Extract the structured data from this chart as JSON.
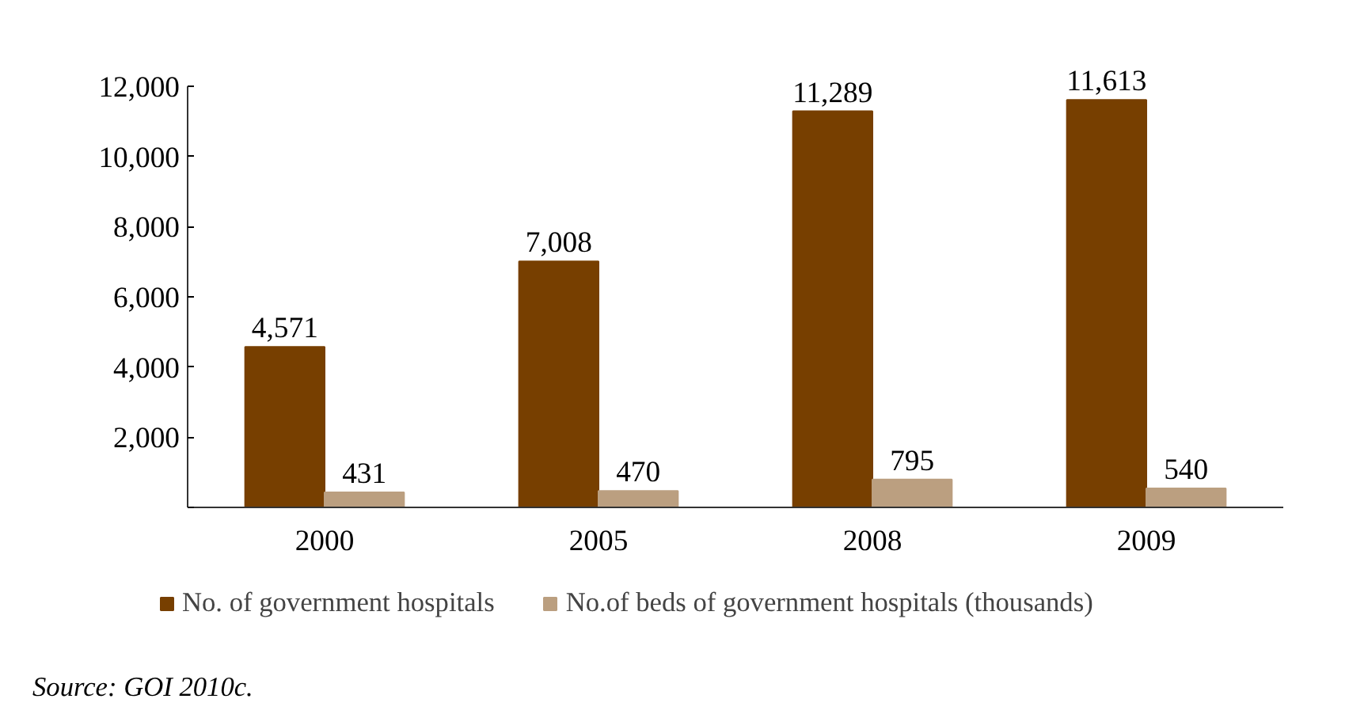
{
  "chart_data": {
    "type": "bar",
    "categories": [
      "2000",
      "2005",
      "2008",
      "2009"
    ],
    "series": [
      {
        "name": "No. of government hospitals",
        "color": "#773f00",
        "values": [
          4571,
          7008,
          11289,
          11613
        ],
        "value_labels": [
          "4,571",
          "7,008",
          "11,289",
          "11,613"
        ]
      },
      {
        "name": "No.of beds of government hospitals (thousands)",
        "color": "#bb9f80",
        "values": [
          431,
          470,
          795,
          540
        ],
        "value_labels": [
          "431",
          "470",
          "795",
          "540"
        ]
      }
    ],
    "ylim": [
      0,
      12000
    ],
    "yticks": [
      {
        "value": 0,
        "label": null
      },
      {
        "value": 2000,
        "label": "2,000"
      },
      {
        "value": 4000,
        "label": "4,000"
      },
      {
        "value": 6000,
        "label": "6,000"
      },
      {
        "value": 8000,
        "label": "8,000"
      },
      {
        "value": 10000,
        "label": "10,000"
      },
      {
        "value": 12000,
        "label": "12,000"
      }
    ],
    "grid": false,
    "legend": "bottom",
    "annotations": [
      "Source: GOI 2010c."
    ]
  }
}
